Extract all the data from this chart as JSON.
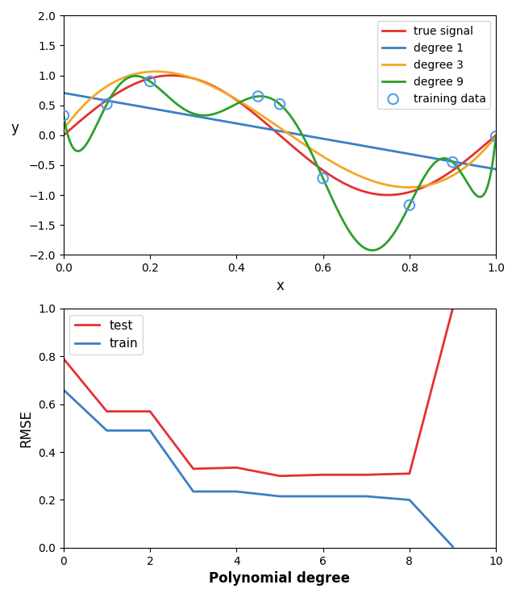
{
  "top_plot": {
    "xlim": [
      0.0,
      1.0
    ],
    "ylim": [
      -2.0,
      2.0
    ],
    "xlabel": "x",
    "ylabel": "y",
    "training_x": [
      0.0,
      0.1,
      0.2,
      0.45,
      0.5,
      0.6,
      0.8,
      0.9,
      1.0
    ],
    "training_y": [
      0.33,
      0.52,
      0.9,
      0.65,
      0.52,
      -0.72,
      -1.17,
      -0.45,
      -0.02
    ],
    "true_signal_color": "#e53030",
    "degree1_color": "#3b7fc4",
    "degree3_color": "#f5a623",
    "degree9_color": "#2ca02c",
    "training_data_facecolor": "none",
    "training_data_edgecolor": "#5599ee",
    "training_markersize": 9,
    "legend_loc": "upper right"
  },
  "bottom_plot": {
    "xlim": [
      0,
      10
    ],
    "ylim": [
      0.0,
      1.0
    ],
    "xlabel": "Polynomial degree",
    "ylabel": "RMSE",
    "test_x": [
      0,
      1,
      2,
      3,
      4,
      5,
      6,
      7,
      8,
      9
    ],
    "test_y": [
      0.79,
      0.57,
      0.57,
      0.33,
      0.335,
      0.3,
      0.305,
      0.305,
      0.31,
      1.0
    ],
    "train_x": [
      0,
      1,
      2,
      3,
      4,
      5,
      6,
      7,
      8,
      9
    ],
    "train_y": [
      0.66,
      0.49,
      0.49,
      0.235,
      0.235,
      0.215,
      0.215,
      0.215,
      0.2,
      0.005
    ],
    "test_color": "#e53030",
    "train_color": "#3b7fc4",
    "legend_loc": "upper left"
  }
}
